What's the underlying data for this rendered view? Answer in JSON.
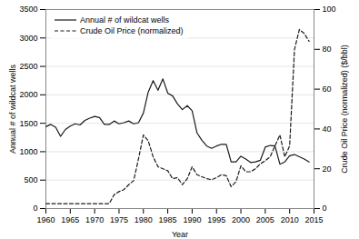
{
  "chart_data": {
    "type": "line",
    "xlabel": "Year",
    "ylabel": "Annual # of wildcat wells",
    "y2label": "Crude Oil Price (normalized) ($/bbl)",
    "x": [
      1960,
      1961,
      1962,
      1963,
      1964,
      1965,
      1966,
      1967,
      1968,
      1969,
      1970,
      1971,
      1972,
      1973,
      1974,
      1975,
      1976,
      1977,
      1978,
      1979,
      1980,
      1981,
      1982,
      1983,
      1984,
      1985,
      1986,
      1987,
      1988,
      1989,
      1990,
      1991,
      1992,
      1993,
      1994,
      1995,
      1996,
      1997,
      1998,
      1999,
      2000,
      2001,
      2002,
      2003,
      2004,
      2005,
      2006,
      2007,
      2008,
      2009,
      2010,
      2011,
      2012,
      2013,
      2014
    ],
    "xlim": [
      1960,
      2015
    ],
    "xticks": [
      1960,
      1965,
      1970,
      1975,
      1980,
      1985,
      1990,
      1995,
      2000,
      2005,
      2010,
      2015
    ],
    "ylim": [
      0,
      3500
    ],
    "yticks": [
      0,
      500,
      1000,
      1500,
      2000,
      2500,
      3000,
      3500
    ],
    "y2lim": [
      0,
      100
    ],
    "y2ticks": [
      0,
      20,
      40,
      60,
      80,
      100
    ],
    "grid": true,
    "legend": "upper left",
    "series": [
      {
        "name": "Annual # of wildcat wells",
        "color": "#1a1a1a",
        "line_style": "solid",
        "values": [
          1440,
          1480,
          1430,
          1270,
          1390,
          1450,
          1490,
          1470,
          1550,
          1590,
          1620,
          1600,
          1480,
          1480,
          1540,
          1490,
          1510,
          1540,
          1490,
          1510,
          1680,
          2050,
          2250,
          2080,
          2280,
          2030,
          1980,
          1840,
          1740,
          1810,
          1720,
          1330,
          1200,
          1100,
          1060,
          1100,
          1130,
          1130,
          820,
          820,
          920,
          870,
          810,
          820,
          850,
          1080,
          1110,
          1100,
          780,
          820,
          930,
          950,
          910,
          870,
          820
        ]
      },
      {
        "name": "Crude Oil Price (normalized)",
        "color": "#1a1a1a",
        "line_style": "dashed",
        "axis": "y2",
        "values": [
          2.5,
          2.5,
          2.5,
          2.5,
          2.5,
          2.5,
          2.5,
          2.5,
          2.5,
          2.5,
          2.5,
          2.5,
          2.5,
          2.5,
          7.0,
          8.5,
          9.5,
          12.0,
          14.0,
          25.0,
          37.0,
          34.0,
          26.0,
          21.0,
          20.0,
          19.0,
          15.0,
          15.5,
          12.0,
          15.0,
          21.0,
          17.0,
          16.0,
          15.0,
          14.5,
          15.5,
          17.0,
          16.5,
          11.0,
          13.5,
          21.5,
          18.5,
          18.5,
          20.0,
          22.5,
          24.0,
          26.0,
          31.5,
          37.0,
          26.0,
          31.5,
          80.0,
          90.0,
          88.0,
          84.0
        ]
      }
    ]
  }
}
